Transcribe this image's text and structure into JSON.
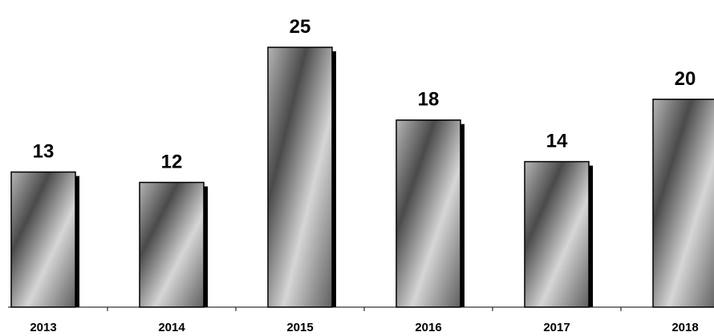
{
  "chart_data": {
    "type": "bar",
    "title": "",
    "xlabel": "",
    "ylabel": "",
    "categories": [
      "2013",
      "2014",
      "2015",
      "2016",
      "2017",
      "2018"
    ],
    "values": [
      13,
      12,
      25,
      18,
      14,
      20
    ],
    "ylim": [
      0,
      25
    ],
    "grid": false,
    "legend": "none",
    "data_labels": [
      "13",
      "12",
      "25",
      "18",
      "14",
      "20"
    ],
    "colors": {
      "bar_dark": "#444444",
      "bar_light": "#d8d8d8",
      "shadow": "#000000",
      "axis": "#000000"
    }
  }
}
